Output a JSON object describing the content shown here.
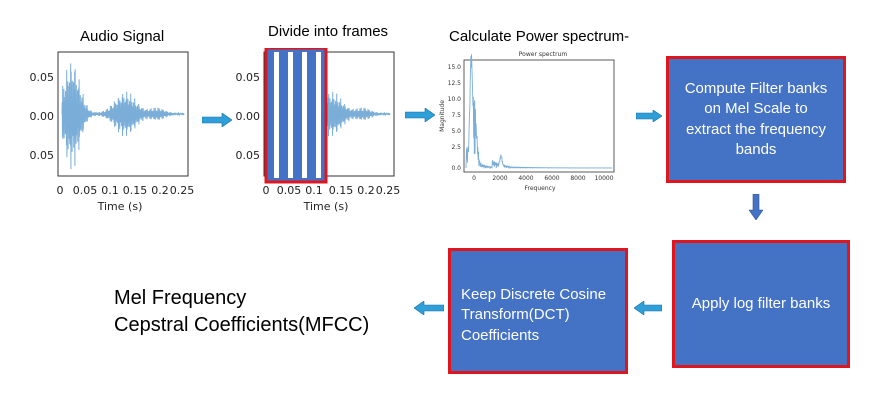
{
  "steps": {
    "audio": {
      "title": "Audio Signal",
      "yticks": [
        "0.05",
        "0.00",
        "0.05"
      ],
      "xticks": [
        "0",
        "0.05",
        "0.1",
        "0.15",
        "0.2",
        "0.25"
      ],
      "xlabel": "Time (s)"
    },
    "frames": {
      "title": "Divide into frames",
      "yticks": [
        "0.05",
        "0.00",
        "0.05"
      ],
      "xticks": [
        "0",
        "0.05",
        "0.1",
        "0.15",
        "0.2",
        "0.25"
      ],
      "xlabel": "Time (s)"
    },
    "spectrum": {
      "title": "Calculate Power spectrum-",
      "plot_title": "Power spectrum",
      "ylabel": "Magnitude",
      "xlabel": "Frequency",
      "yticks": [
        "15.0",
        "12.5",
        "10.0",
        "7.5",
        "5.0",
        "2.5",
        "0.0"
      ],
      "xticks": [
        "0",
        "2000",
        "4000",
        "6000",
        "8000",
        "10000"
      ]
    },
    "filter_banks": {
      "lines": [
        "Compute Filter banks",
        "on Mel Scale to",
        "extract the frequency",
        "bands"
      ]
    },
    "log_banks": {
      "lines": [
        "Apply log filter banks"
      ]
    },
    "dct": {
      "lines": [
        "Keep Discrete Cosine",
        "Transform(DCT)",
        "Coefficients"
      ]
    },
    "result": {
      "lines": [
        "Mel Frequency",
        "Cepstral Coefficients(MFCC)"
      ]
    }
  },
  "colors": {
    "box_fill": "#4472c4",
    "box_border": "#e0161e",
    "arrow": "#2e9fd9",
    "waveform": "#7aaed8",
    "frame_border": "#e0161e"
  }
}
